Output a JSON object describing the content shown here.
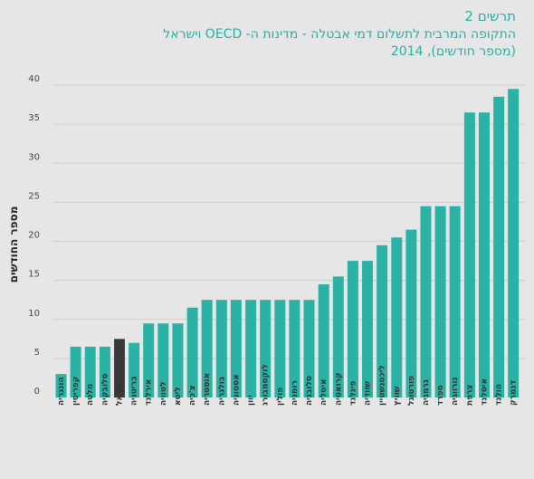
{
  "header": {
    "figure_label": "תרשים 2",
    "title": "התקופה המרבית לתשלום דמי אבטלה - מדינות ה- OECD וישראל",
    "subtitle": "(מספר חודשים), 2014"
  },
  "colors": {
    "bar": "#2ab3a5",
    "highlight": "#3a3a3a",
    "grid": "#cfcfcf",
    "background": "#e6e6e6"
  },
  "chart_data": {
    "type": "bar",
    "title": "התקופה המרבית לתשלום דמי אבטלה - מדינות ה- OECD וישראל",
    "subtitle": "(מספר חודשים), 2014",
    "ylabel": "מספר החודשים",
    "xlabel": "",
    "ylim": [
      0,
      40
    ],
    "yticks": [
      0,
      5,
      10,
      15,
      20,
      25,
      30,
      35,
      40
    ],
    "grid": true,
    "highlight_category": "ישראל",
    "categories": [
      "הונגריה",
      "קפריסין",
      "מלטה",
      "סלובקיה",
      "ישראל",
      "בריטניה",
      "אירלנד",
      "לטוויה",
      "ליטא",
      "צ'כיה",
      "אוסטריה",
      "בולגריה",
      "אסטוניה",
      "יוון",
      "לוקסמבורג",
      "פולין",
      "רומניה",
      "סלובניה",
      "איטליה",
      "קרואטיה",
      "פינלנד",
      "שוודיה",
      "ליכטנשטיין",
      "שוויץ",
      "פורטוגל",
      "גרמניה",
      "ספרד",
      "נורווגיה",
      "צרפת",
      "איסלנד",
      "הולנד",
      "דנמרק"
    ],
    "values": [
      3,
      6.5,
      6.5,
      6.5,
      7.5,
      7,
      9.5,
      9.5,
      9.5,
      11.5,
      12.5,
      12.5,
      12.5,
      12.5,
      12.5,
      12.5,
      12.5,
      12.5,
      14.5,
      15.5,
      17.5,
      17.5,
      19.5,
      20.5,
      21.5,
      24.5,
      24.5,
      24.5,
      36.5,
      36.5,
      38.5,
      39.5
    ]
  }
}
